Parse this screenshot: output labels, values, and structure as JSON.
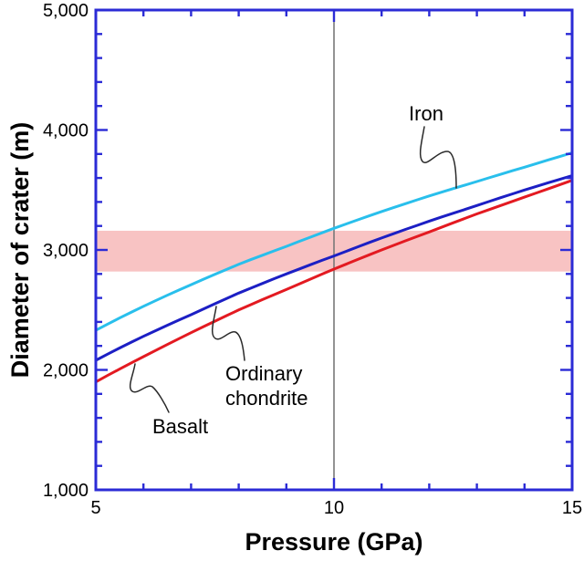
{
  "page": {
    "background": "#ffffff"
  },
  "chart_data": {
    "type": "line",
    "title": "",
    "xlabel": "Pressure (GPa)",
    "ylabel": "Diameter of crater (m)",
    "xlim": [
      5,
      15
    ],
    "ylim": [
      1000,
      5000
    ],
    "xticks": [
      5,
      10,
      15
    ],
    "xtick_labels": [
      "5",
      "10",
      "15"
    ],
    "x_minor_step": 1,
    "yticks": [
      1000,
      2000,
      3000,
      4000,
      5000
    ],
    "ytick_labels": [
      "1,000",
      "2,000",
      "3,000",
      "4,000",
      "5,000"
    ],
    "y_minor_step": 200,
    "grid": false,
    "legend_position": "inline-annotations",
    "axis_color": "#2b2bd6",
    "x": [
      5,
      6,
      7,
      8,
      9,
      10,
      11,
      12,
      13,
      14,
      15
    ],
    "series": [
      {
        "name": "Iron",
        "color": "#29bfec",
        "values": [
          2330,
          2530,
          2710,
          2880,
          3030,
          3180,
          3320,
          3450,
          3570,
          3690,
          3810
        ]
      },
      {
        "name": "Ordinary chondrite",
        "color": "#1c1fc4",
        "values": [
          2080,
          2280,
          2460,
          2640,
          2800,
          2950,
          3100,
          3240,
          3370,
          3500,
          3620
        ]
      },
      {
        "name": "Basalt",
        "color": "#e31a21",
        "values": [
          1900,
          2110,
          2310,
          2500,
          2670,
          2840,
          3000,
          3150,
          3300,
          3440,
          3580
        ]
      }
    ],
    "highlight_band": {
      "y_min": 2820,
      "y_max": 3160,
      "color": "#f8c3c3"
    },
    "vline": {
      "x": 10,
      "color": "#787878"
    },
    "annotations": [
      {
        "label": "Iron"
      },
      {
        "label": "Ordinary chondrite",
        "lines": [
          "Ordinary",
          "chondrite"
        ]
      },
      {
        "label": "Basalt"
      }
    ]
  }
}
